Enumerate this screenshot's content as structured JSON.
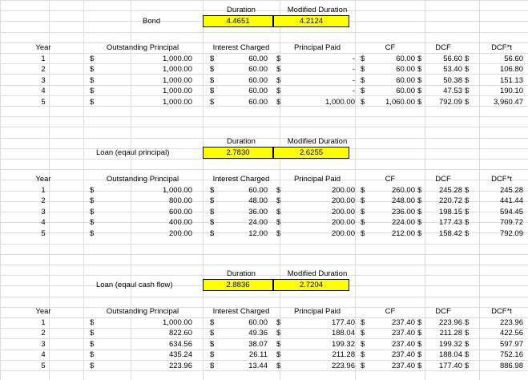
{
  "dollar_sign": "$",
  "sections": [
    {
      "id": "bond",
      "label": "Bond",
      "duration_header": "Duration",
      "modified_duration_header": "Modified Duration",
      "duration_value": "4.4651",
      "modified_duration_value": "4.2124",
      "headers": {
        "year": "Year",
        "outstanding_principal": "Outstanding Principal",
        "interest_charged": "Interest Charged",
        "principal_paid": "Principal Paid",
        "cf": "CF",
        "dcf": "DCF",
        "dcf_t": "DCF*t"
      },
      "rows": [
        {
          "year": "1",
          "outstanding_principal": "1,000.00",
          "interest_charged": "60.00",
          "principal_paid": "-",
          "cf": "60.00",
          "dcf": "56.60",
          "dcf_t": "56.60"
        },
        {
          "year": "2",
          "outstanding_principal": "1,000.00",
          "interest_charged": "60.00",
          "principal_paid": "-",
          "cf": "60.00",
          "dcf": "53.40",
          "dcf_t": "106.80"
        },
        {
          "year": "3",
          "outstanding_principal": "1,000.00",
          "interest_charged": "60.00",
          "principal_paid": "-",
          "cf": "60.00",
          "dcf": "50.38",
          "dcf_t": "151.13"
        },
        {
          "year": "4",
          "outstanding_principal": "1,000.00",
          "interest_charged": "60.00",
          "principal_paid": "-",
          "cf": "60.00",
          "dcf": "47.53",
          "dcf_t": "190.10"
        },
        {
          "year": "5",
          "outstanding_principal": "1,000.00",
          "interest_charged": "60.00",
          "principal_paid": "1,000.00",
          "cf": "1,060.00",
          "dcf": "792.09",
          "dcf_t": "3,960.47"
        }
      ]
    },
    {
      "id": "loan_equal_principal",
      "label": "Loan (eqaul principal)",
      "duration_header": "Duration",
      "modified_duration_header": "Modified Duration",
      "duration_value": "2.7830",
      "modified_duration_value": "2.6255",
      "headers": {
        "year": "Year",
        "outstanding_principal": "Outstanding Principal",
        "interest_charged": "Interest Charged",
        "principal_paid": "Principal Paid",
        "cf": "CF",
        "dcf": "DCF",
        "dcf_t": "DCF*t"
      },
      "rows": [
        {
          "year": "1",
          "outstanding_principal": "1,000.00",
          "interest_charged": "60.00",
          "principal_paid": "200.00",
          "cf": "260.00",
          "dcf": "245.28",
          "dcf_t": "245.28"
        },
        {
          "year": "2",
          "outstanding_principal": "800.00",
          "interest_charged": "48.00",
          "principal_paid": "200.00",
          "cf": "248.00",
          "dcf": "220.72",
          "dcf_t": "441.44"
        },
        {
          "year": "3",
          "outstanding_principal": "600.00",
          "interest_charged": "36.00",
          "principal_paid": "200.00",
          "cf": "236.00",
          "dcf": "198.15",
          "dcf_t": "594.45"
        },
        {
          "year": "4",
          "outstanding_principal": "400.00",
          "interest_charged": "24.00",
          "principal_paid": "200.00",
          "cf": "224.00",
          "dcf": "177.43",
          "dcf_t": "709.72"
        },
        {
          "year": "5",
          "outstanding_principal": "200.00",
          "interest_charged": "12.00",
          "principal_paid": "200.00",
          "cf": "212.00",
          "dcf": "158.42",
          "dcf_t": "792.09"
        }
      ]
    },
    {
      "id": "loan_equal_cash_flow",
      "label": "Loan (eqaul cash flow)",
      "duration_header": "Duration",
      "modified_duration_header": "Modified Duration",
      "duration_value": "2.8836",
      "modified_duration_value": "2.7204",
      "headers": {
        "year": "Year",
        "outstanding_principal": "Outstanding Principal",
        "interest_charged": "Interest Charged",
        "principal_paid": "Principal Paid",
        "cf": "CF",
        "dcf": "DCF",
        "dcf_t": "DCF*t"
      },
      "rows": [
        {
          "year": "1",
          "outstanding_principal": "1,000.00",
          "interest_charged": "60.00",
          "principal_paid": "177.40",
          "cf": "237.40",
          "dcf": "223.96",
          "dcf_t": "223.96"
        },
        {
          "year": "2",
          "outstanding_principal": "822.60",
          "interest_charged": "49.36",
          "principal_paid": "188.04",
          "cf": "237.40",
          "dcf": "211.28",
          "dcf_t": "422.56"
        },
        {
          "year": "3",
          "outstanding_principal": "634.56",
          "interest_charged": "38.07",
          "principal_paid": "199.32",
          "cf": "237.40",
          "dcf": "199.32",
          "dcf_t": "597.97"
        },
        {
          "year": "4",
          "outstanding_principal": "435.24",
          "interest_charged": "26.11",
          "principal_paid": "211.28",
          "cf": "237.40",
          "dcf": "188.04",
          "dcf_t": "752.16"
        },
        {
          "year": "5",
          "outstanding_principal": "223.96",
          "interest_charged": "13.44",
          "principal_paid": "223.96",
          "cf": "237.40",
          "dcf": "177.40",
          "dcf_t": "886.98"
        }
      ]
    }
  ],
  "colors": {
    "highlight": "#ffff00",
    "gridline": "#dadcdd",
    "text": "#000000"
  }
}
